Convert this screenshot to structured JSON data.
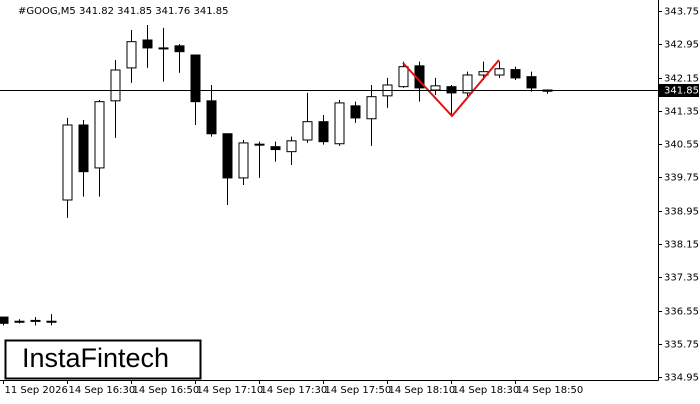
{
  "chart_data": {
    "type": "candlestick",
    "header": "#GOOG,M5  341.82 341.85 341.76 341.85",
    "watermark": "InstaFintech",
    "categories": [
      "11 Sep 2026",
      null,
      null,
      null,
      "14 Sep 16:30",
      null,
      null,
      null,
      "14 Sep 16:50",
      null,
      null,
      null,
      "14 Sep 17:10",
      null,
      null,
      null,
      "14 Sep 17:30",
      null,
      null,
      null,
      "14 Sep 17:50",
      null,
      null,
      null,
      "14 Sep 18:10",
      null,
      null,
      null,
      "14 Sep 18:30",
      null,
      null,
      null,
      "14 Sep 18:50",
      null,
      null
    ],
    "open": [
      336.4,
      336.3,
      336.32,
      336.3,
      339.21,
      341.01,
      339.98,
      341.59,
      342.38,
      343.05,
      342.86,
      342.91,
      342.69,
      341.59,
      340.8,
      339.74,
      340.55,
      340.49,
      340.37,
      340.65,
      341.09,
      340.56,
      341.47,
      341.16,
      341.71,
      341.93,
      342.43,
      341.85,
      341.93,
      341.78,
      342.21,
      342.21,
      342.34,
      342.17,
      341.82
    ],
    "high": [
      336.4,
      336.35,
      336.4,
      336.47,
      341.18,
      341.13,
      341.61,
      342.57,
      343.29,
      343.41,
      343.34,
      342.95,
      342.7,
      341.97,
      340.81,
      340.65,
      340.61,
      340.61,
      340.73,
      341.78,
      341.25,
      341.61,
      341.57,
      341.97,
      342.14,
      342.53,
      342.53,
      342.14,
      341.97,
      342.29,
      342.53,
      342.53,
      342.41,
      342.29,
      341.85
    ],
    "low": [
      336.2,
      336.25,
      336.2,
      336.2,
      338.78,
      339.29,
      339.29,
      340.7,
      342.02,
      342.38,
      342.05,
      342.26,
      341.01,
      340.73,
      339.09,
      339.57,
      339.74,
      340.13,
      340.05,
      340.58,
      340.54,
      340.51,
      341.06,
      340.51,
      341.42,
      341.9,
      341.57,
      341.73,
      341.23,
      341.71,
      342.09,
      342.14,
      342.09,
      341.81,
      341.76
    ],
    "close": [
      336.25,
      336.28,
      336.3,
      336.28,
      341.01,
      339.89,
      341.57,
      342.33,
      343.01,
      342.86,
      342.85,
      342.77,
      341.57,
      340.8,
      339.74,
      340.58,
      340.54,
      340.42,
      340.63,
      341.09,
      340.61,
      341.54,
      341.18,
      341.69,
      341.97,
      342.41,
      341.9,
      341.95,
      341.78,
      342.21,
      342.29,
      342.36,
      342.14,
      341.9,
      341.85
    ],
    "up_color": "#ffffff",
    "down_color": "#000000",
    "pattern_color": "#e01010",
    "current_price": 341.85,
    "ylim": [
      334.89,
      344.01
    ],
    "yticks": [
      {
        "value": 343.75,
        "label": "343.75"
      },
      {
        "value": 342.95,
        "label": "342.95"
      },
      {
        "value": 342.15,
        "label": "342.15"
      },
      {
        "value": 341.35,
        "label": "341.35"
      },
      {
        "value": 340.55,
        "label": "340.55"
      },
      {
        "value": 339.75,
        "label": "339.75"
      },
      {
        "value": 338.95,
        "label": "338.95"
      },
      {
        "value": 338.15,
        "label": "338.15"
      },
      {
        "value": 337.35,
        "label": "337.35"
      },
      {
        "value": 336.55,
        "label": "336.55"
      },
      {
        "value": 335.75,
        "label": "335.75"
      },
      {
        "value": 334.95,
        "label": "334.95"
      }
    ],
    "grid": false
  }
}
